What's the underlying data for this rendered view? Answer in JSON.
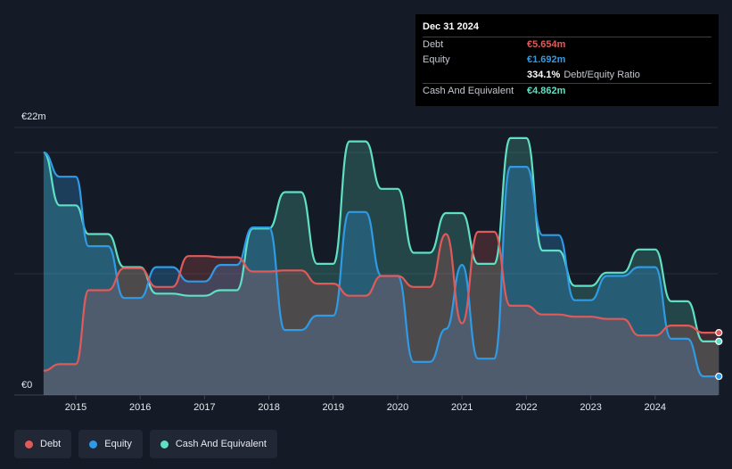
{
  "colors": {
    "debt": "#e05a5a",
    "equity": "#2f9ae5",
    "cash": "#5fe0c4",
    "background": "#151b26",
    "grid": "#2b3240"
  },
  "tooltip": {
    "date": "Dec 31 2024",
    "rows": [
      {
        "label": "Debt",
        "value": "€5.654m",
        "color": "#e05a5a"
      },
      {
        "label": "Equity",
        "value": "€1.692m",
        "color": "#2f9ae5"
      },
      {
        "label": "",
        "value": "334.1%",
        "extra": "Debt/Equity Ratio",
        "color": "#ffffff"
      },
      {
        "label": "Cash And Equivalent",
        "value": "€4.862m",
        "color": "#5fe0c4"
      }
    ]
  },
  "legend": [
    {
      "label": "Debt",
      "color": "#e05a5a"
    },
    {
      "label": "Equity",
      "color": "#2f9ae5"
    },
    {
      "label": "Cash And Equivalent",
      "color": "#5fe0c4"
    }
  ],
  "chart_data": {
    "type": "area",
    "title": "",
    "xlabel": "",
    "ylabel": "",
    "y_top_label": "€22m",
    "y_bottom_label": "€0",
    "ylim": [
      0,
      22
    ],
    "xlim": [
      2014.5,
      2025.0
    ],
    "x_ticks": [
      2015,
      2016,
      2017,
      2018,
      2019,
      2020,
      2021,
      2022,
      2023,
      2024
    ],
    "x_tick_labels": [
      "2015",
      "2016",
      "2017",
      "2018",
      "2019",
      "2020",
      "2021",
      "2022",
      "2023",
      "2024"
    ],
    "grid": true,
    "legend_position": "bottom-left",
    "series": [
      {
        "name": "Debt",
        "x": [
          2014.5,
          2014.75,
          2015.0,
          2015.2,
          2015.5,
          2015.75,
          2016.0,
          2016.25,
          2016.5,
          2016.75,
          2017.0,
          2017.25,
          2017.5,
          2017.75,
          2018.0,
          2018.25,
          2018.5,
          2018.75,
          2019.0,
          2019.25,
          2019.5,
          2019.75,
          2020.0,
          2020.25,
          2020.5,
          2020.75,
          2021.0,
          2021.25,
          2021.5,
          2021.75,
          2022.0,
          2022.25,
          2022.5,
          2022.75,
          2023.0,
          2023.25,
          2023.5,
          2023.75,
          2024.0,
          2024.25,
          2024.5,
          2024.75,
          2024.99
        ],
        "y": [
          2.2,
          2.8,
          2.8,
          9.5,
          9.5,
          11.5,
          11.5,
          9.8,
          9.8,
          12.6,
          12.6,
          12.5,
          12.5,
          11.2,
          11.2,
          11.3,
          11.3,
          10.1,
          10.1,
          9.0,
          9.0,
          10.8,
          10.8,
          9.8,
          9.8,
          14.6,
          6.5,
          14.8,
          14.8,
          8.1,
          8.1,
          7.3,
          7.3,
          7.1,
          7.1,
          6.9,
          6.9,
          5.4,
          5.4,
          6.3,
          6.3,
          5.654,
          5.654
        ]
      },
      {
        "name": "Equity",
        "x": [
          2014.5,
          2014.75,
          2015.0,
          2015.2,
          2015.5,
          2015.75,
          2016.0,
          2016.25,
          2016.5,
          2016.75,
          2017.0,
          2017.25,
          2017.5,
          2017.75,
          2018.0,
          2018.25,
          2018.5,
          2018.75,
          2019.0,
          2019.25,
          2019.5,
          2019.75,
          2020.0,
          2020.25,
          2020.5,
          2020.75,
          2021.0,
          2021.25,
          2021.5,
          2021.75,
          2022.0,
          2022.25,
          2022.5,
          2022.75,
          2023.0,
          2023.25,
          2023.5,
          2023.75,
          2024.0,
          2024.25,
          2024.5,
          2024.75,
          2024.99
        ],
        "y": [
          22.0,
          19.8,
          19.8,
          13.5,
          13.5,
          8.8,
          8.8,
          11.6,
          11.6,
          10.3,
          10.3,
          11.8,
          11.8,
          15.2,
          15.2,
          5.9,
          5.9,
          7.2,
          7.2,
          16.6,
          16.6,
          10.8,
          10.8,
          3.0,
          3.0,
          6.0,
          11.8,
          3.3,
          3.3,
          20.7,
          20.7,
          14.5,
          14.5,
          8.6,
          8.6,
          10.8,
          10.8,
          11.6,
          11.6,
          5.1,
          5.1,
          1.692,
          1.692
        ]
      },
      {
        "name": "Cash And Equivalent",
        "x": [
          2014.5,
          2014.75,
          2015.0,
          2015.2,
          2015.5,
          2015.75,
          2016.0,
          2016.25,
          2016.5,
          2016.75,
          2017.0,
          2017.25,
          2017.5,
          2017.75,
          2018.0,
          2018.25,
          2018.5,
          2018.75,
          2019.0,
          2019.25,
          2019.5,
          2019.75,
          2020.0,
          2020.25,
          2020.5,
          2020.75,
          2021.0,
          2021.25,
          2021.5,
          2021.75,
          2022.0,
          2022.25,
          2022.5,
          2022.75,
          2023.0,
          2023.25,
          2023.5,
          2023.75,
          2024.0,
          2024.25,
          2024.5,
          2024.75,
          2024.99
        ],
        "y": [
          22.0,
          17.2,
          17.2,
          14.6,
          14.6,
          11.6,
          11.6,
          9.2,
          9.2,
          9.0,
          9.0,
          9.5,
          9.5,
          15.1,
          15.1,
          18.4,
          18.4,
          11.9,
          11.9,
          23.0,
          23.0,
          18.7,
          18.7,
          12.9,
          12.9,
          16.5,
          16.5,
          11.9,
          11.9,
          23.3,
          23.3,
          13.1,
          13.1,
          9.9,
          9.9,
          11.1,
          11.1,
          13.2,
          13.2,
          8.5,
          8.5,
          4.862,
          4.862
        ]
      }
    ]
  }
}
